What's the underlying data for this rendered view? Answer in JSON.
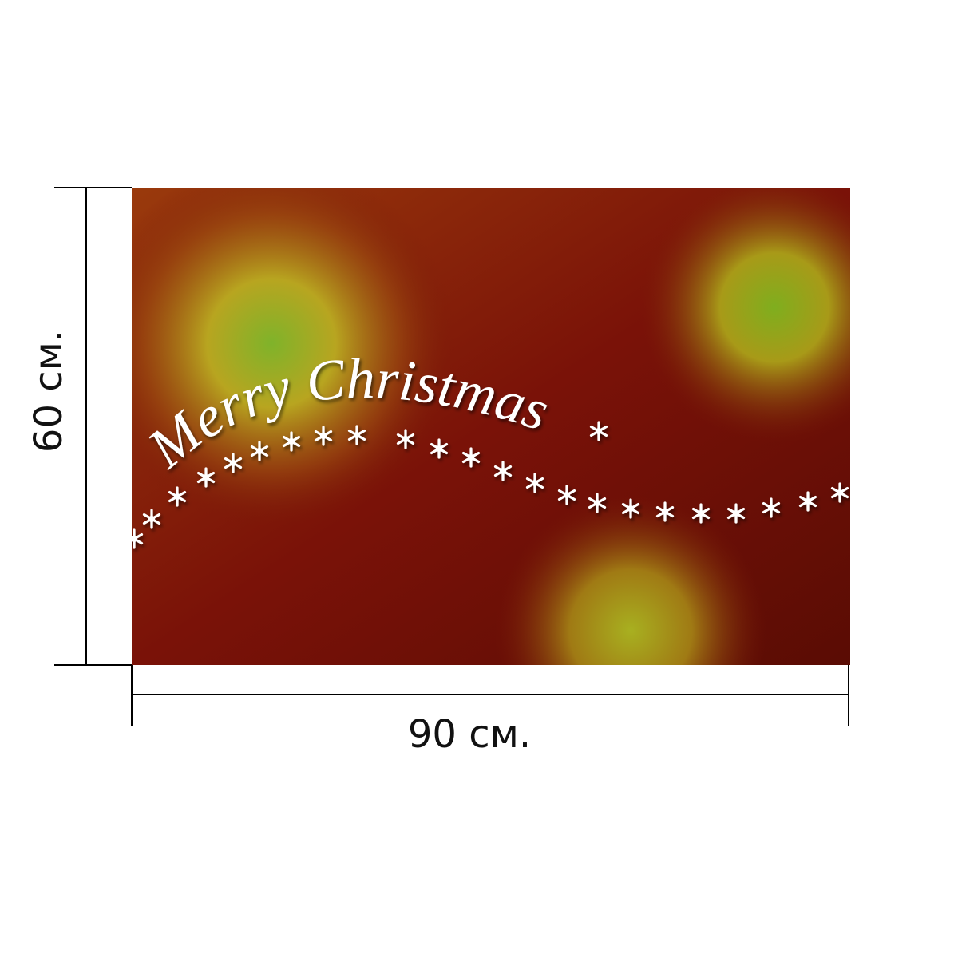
{
  "image": {
    "caption": "Merry Christmas"
  },
  "dimensions": {
    "height": "60 см.",
    "width": "90 см."
  }
}
